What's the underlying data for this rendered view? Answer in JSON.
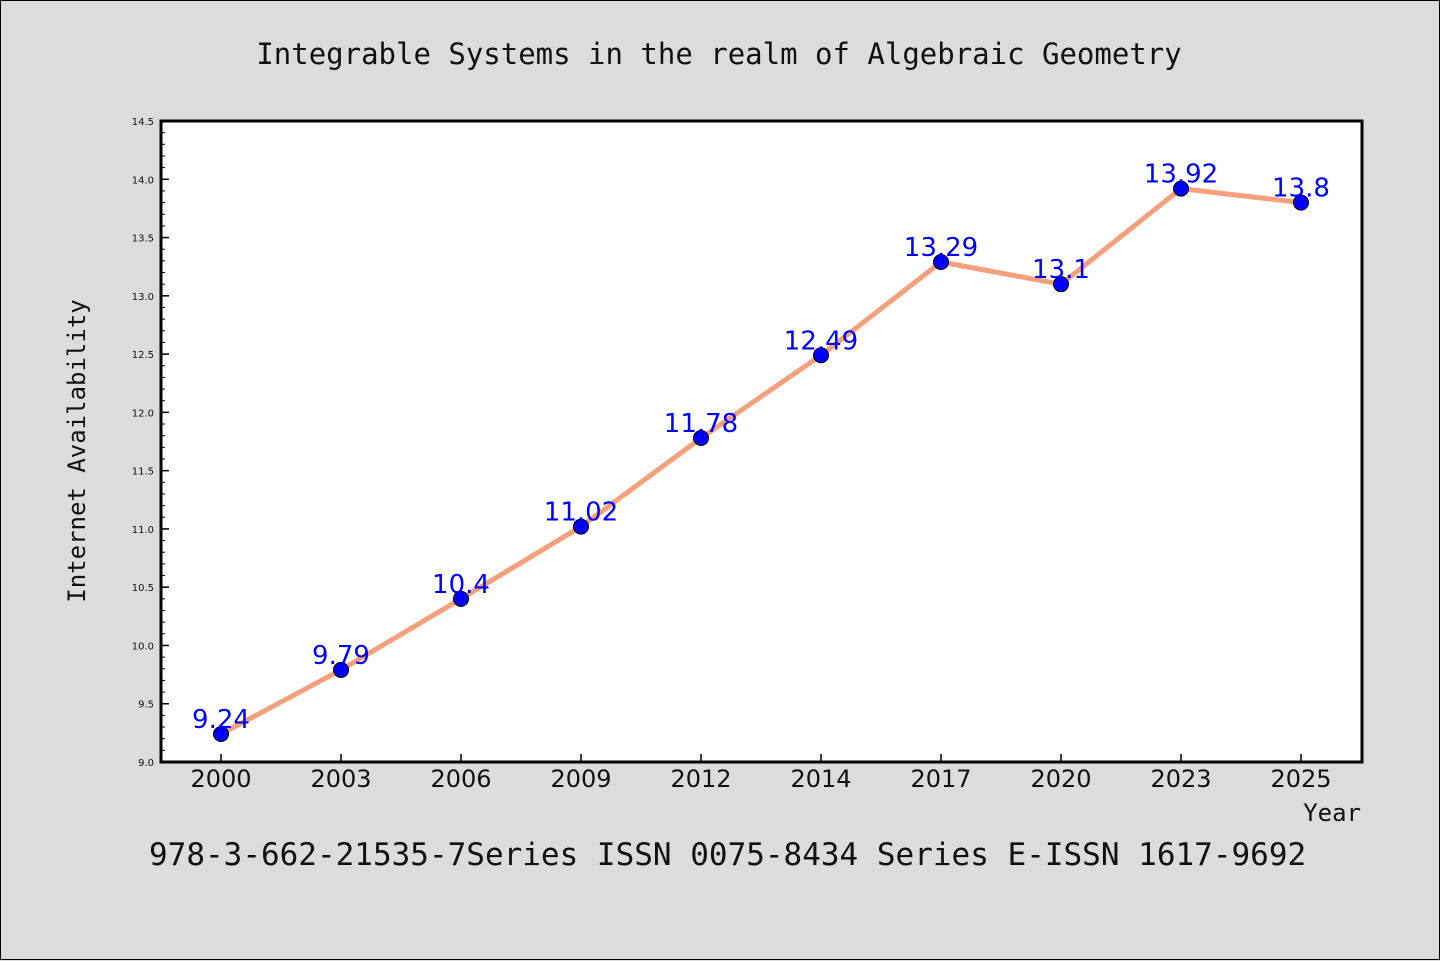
{
  "chart_data": {
    "type": "line",
    "title": "Integrable Systems in the realm of Algebraic Geometry",
    "xlabel": "Year",
    "ylabel": "Internet Availability",
    "caption": "978-3-662-21535-7Series ISSN 0075-8434 Series E-ISSN 1617-9692",
    "categories": [
      "2000",
      "2003",
      "2006",
      "2009",
      "2012",
      "2014",
      "2017",
      "2020",
      "2023",
      "2025"
    ],
    "series": [
      {
        "values": [
          9.24,
          9.79,
          10.4,
          11.02,
          11.78,
          12.49,
          13.29,
          13.1,
          13.92,
          13.8
        ],
        "data_labels": [
          "9.24",
          "9.79",
          "10.4",
          "11.02",
          "11.78",
          "12.49",
          "13.29",
          "13.1",
          "13.92",
          "13.8"
        ],
        "line_color": "#f4a07c",
        "marker_color": "#0000ff"
      }
    ],
    "ylim": [
      9.0,
      14.5
    ],
    "yticks": [
      "9.0",
      "9.5",
      "10.0",
      "10.5",
      "11.0",
      "11.5",
      "12.0",
      "12.5",
      "13.0",
      "13.5",
      "14.0",
      "14.5"
    ],
    "grid": false,
    "legend": "none"
  },
  "colors": {
    "background": "#dcdcdc",
    "plot_area": "#ffffff",
    "line": "#f4a07c",
    "marker": "#0000ff",
    "data_label": "#0000ff"
  }
}
